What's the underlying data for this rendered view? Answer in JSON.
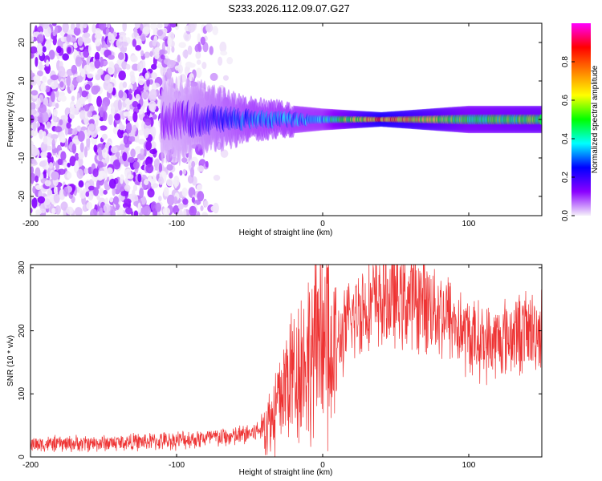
{
  "figure_title": "S233.2026.112.09.07.G27",
  "chart_data": [
    {
      "type": "heatmap",
      "title": "S233.2026.112.09.07.G27",
      "xlabel": "Height of straight line (km)",
      "ylabel": "Frequency (Hz)",
      "xlim": [
        -200,
        150
      ],
      "ylim": [
        -25,
        25
      ],
      "xticks": [
        -200,
        -100,
        0,
        100
      ],
      "yticks": [
        -20,
        -10,
        0,
        10,
        20
      ],
      "xtick_labels": [
        "-200",
        "-100",
        "0",
        "100"
      ],
      "ytick_labels": [
        "-20",
        "-10",
        "0",
        "10",
        "20"
      ],
      "colorbar": {
        "label": "Normalized spectral amplitude",
        "range": [
          0,
          1
        ],
        "ticks": [
          0.0,
          0.2,
          0.4,
          0.6,
          0.8
        ],
        "tick_labels": [
          "0.0",
          "0.2",
          "0.4",
          "0.6",
          "0.8"
        ],
        "colormap": [
          "#f5f0fa",
          "#8a00ff",
          "#0000ff",
          "#00ffff",
          "#00ff00",
          "#ffff00",
          "#ff8000",
          "#ff0000",
          "#ff00ff"
        ]
      },
      "description_data": {
        "noise_region_x": [
          -200,
          -60
        ],
        "signal_center_freq": 0,
        "signal_band_profile": [
          {
            "x": -100,
            "half_width": 4,
            "amplitude": 0.15
          },
          {
            "x": -50,
            "half_width": 2,
            "amplitude": 0.35
          },
          {
            "x": 0,
            "half_width": 1.2,
            "amplitude": 0.4
          },
          {
            "x": 40,
            "half_width": 0.8,
            "amplitude": 0.9
          },
          {
            "x": 100,
            "half_width": 1.5,
            "amplitude": 0.55
          },
          {
            "x": 150,
            "half_width": 1.5,
            "amplitude": 0.6
          }
        ]
      }
    },
    {
      "type": "line",
      "xlabel": "Height of straight line (km)",
      "ylabel": "SNR (10 * v/v)",
      "xlim": [
        -200,
        150
      ],
      "ylim": [
        0,
        305
      ],
      "xticks": [
        -200,
        -100,
        0,
        100
      ],
      "yticks": [
        0,
        100,
        200,
        300
      ],
      "xtick_labels": [
        "-200",
        "-100",
        "0",
        "100"
      ],
      "ytick_labels": [
        "0",
        "100",
        "200",
        "300"
      ],
      "color": "#ee3333",
      "series": [
        {
          "name": "SNR",
          "x": [
            -200,
            -150,
            -110,
            -80,
            -60,
            -45,
            -35,
            -25,
            -15,
            -5,
            5,
            15,
            25,
            35,
            45,
            55,
            65,
            75,
            85,
            95,
            105,
            115,
            125,
            135,
            150
          ],
          "values": [
            20,
            22,
            25,
            30,
            32,
            40,
            60,
            120,
            150,
            170,
            150,
            200,
            235,
            245,
            250,
            250,
            248,
            240,
            225,
            200,
            185,
            180,
            190,
            198,
            200
          ]
        }
      ]
    }
  ]
}
